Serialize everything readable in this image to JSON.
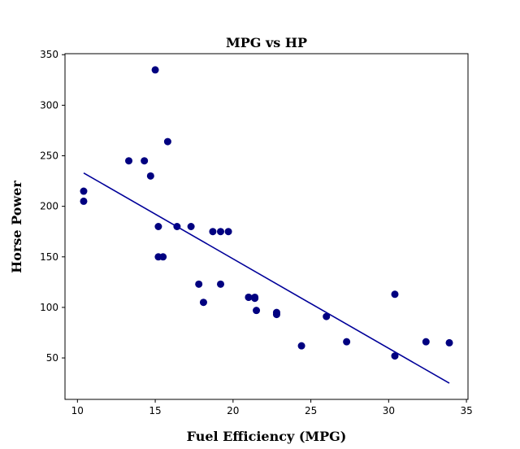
{
  "chart_data": {
    "type": "scatter",
    "title": "MPG vs HP",
    "xlabel": "Fuel Efficiency (MPG)",
    "ylabel": "Horse Power",
    "xlim": [
      9.2,
      35.1
    ],
    "ylim": [
      9.0,
      351.0
    ],
    "xticks": [
      10,
      15,
      20,
      25,
      30,
      35
    ],
    "yticks": [
      50,
      100,
      150,
      200,
      250,
      300,
      350
    ],
    "point_color": "#000080",
    "line_color": "#000099",
    "points": [
      {
        "x": 21.0,
        "y": 110
      },
      {
        "x": 21.0,
        "y": 110
      },
      {
        "x": 22.8,
        "y": 93
      },
      {
        "x": 21.4,
        "y": 110
      },
      {
        "x": 18.7,
        "y": 175
      },
      {
        "x": 18.1,
        "y": 105
      },
      {
        "x": 14.3,
        "y": 245
      },
      {
        "x": 24.4,
        "y": 62
      },
      {
        "x": 22.8,
        "y": 95
      },
      {
        "x": 19.2,
        "y": 123
      },
      {
        "x": 17.8,
        "y": 123
      },
      {
        "x": 16.4,
        "y": 180
      },
      {
        "x": 17.3,
        "y": 180
      },
      {
        "x": 15.2,
        "y": 180
      },
      {
        "x": 10.4,
        "y": 205
      },
      {
        "x": 10.4,
        "y": 215
      },
      {
        "x": 14.7,
        "y": 230
      },
      {
        "x": 32.4,
        "y": 66
      },
      {
        "x": 30.4,
        "y": 52
      },
      {
        "x": 33.9,
        "y": 65
      },
      {
        "x": 21.5,
        "y": 97
      },
      {
        "x": 15.5,
        "y": 150
      },
      {
        "x": 15.2,
        "y": 150
      },
      {
        "x": 13.3,
        "y": 245
      },
      {
        "x": 19.2,
        "y": 175
      },
      {
        "x": 27.3,
        "y": 66
      },
      {
        "x": 26.0,
        "y": 91
      },
      {
        "x": 30.4,
        "y": 113
      },
      {
        "x": 15.8,
        "y": 264
      },
      {
        "x": 19.7,
        "y": 175
      },
      {
        "x": 15.0,
        "y": 335
      },
      {
        "x": 21.4,
        "y": 109
      }
    ],
    "fit_line": {
      "x": [
        10.4,
        33.9
      ],
      "y": [
        233,
        25
      ]
    }
  }
}
